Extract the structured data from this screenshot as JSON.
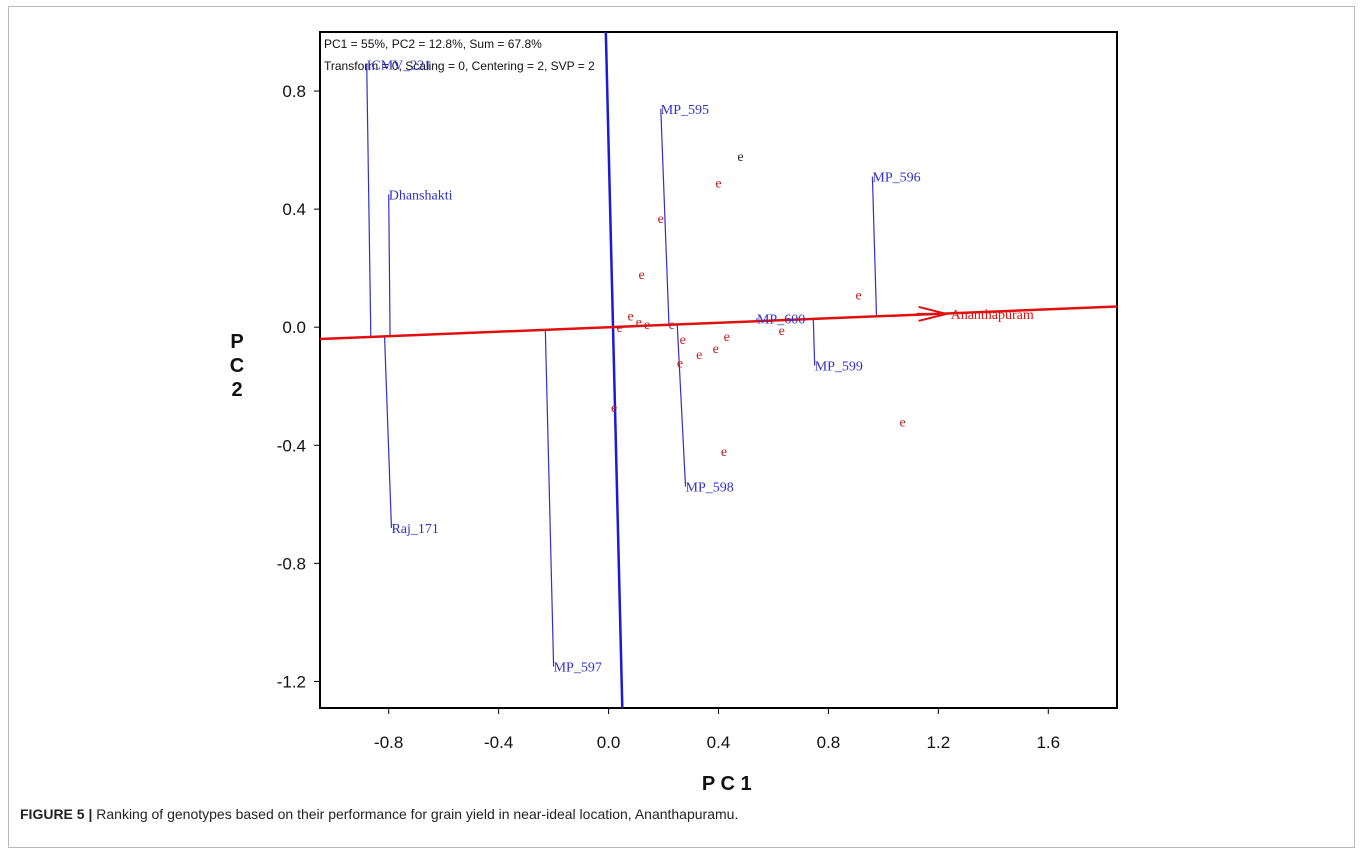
{
  "chart_data": {
    "type": "scatter",
    "info_line1": "PC1 = 55%, PC2 = 12.8%, Sum = 67.8%",
    "info_line2": "Transform = 0, Scaling = 0, Centering = 2, SVP = 2",
    "xlabel": "P C 1",
    "ylabel": [
      "P",
      "C",
      "2"
    ],
    "xlim": [
      -1.05,
      1.85
    ],
    "ylim": [
      -1.29,
      1.0
    ],
    "xticks": [
      -0.8,
      -0.4,
      0.0,
      0.4,
      0.8,
      1.2,
      1.6
    ],
    "xtick_labels": [
      "-0.8",
      "-0.4",
      "0.0",
      "0.4",
      "0.8",
      "1.2",
      "1.6"
    ],
    "yticks": [
      0.8,
      0.4,
      0.0,
      -0.4,
      -0.8,
      -1.2
    ],
    "ytick_labels": [
      "0.8",
      "0.4",
      "0.0",
      "-0.4",
      "-0.8",
      "-1.2"
    ],
    "colors": {
      "genotype": "#3030c8",
      "env_marker": "#c02020",
      "env_marker_dark": "#222222",
      "aec": "#e01010",
      "perp_axis": "#1a1ad8"
    },
    "aec_axis": {
      "from": [
        -1.05,
        -0.04
      ],
      "to": [
        1.85,
        0.07
      ]
    },
    "perpendicular_axis": {
      "from": [
        -0.01,
        1.0
      ],
      "to": [
        0.05,
        -1.29
      ]
    },
    "environment": {
      "label": "Ananthapuramu",
      "display_label": "Ananthapuram",
      "x": 1.23,
      "y": 0.045
    },
    "genotypes": [
      {
        "label": "ICMV_221",
        "x": -0.88,
        "y": 0.89,
        "proj": [
          -0.865,
          -0.035
        ]
      },
      {
        "label": "Dhanshakti",
        "x": -0.8,
        "y": 0.45,
        "proj": [
          -0.795,
          -0.033
        ]
      },
      {
        "label": "Raj_171",
        "x": -0.79,
        "y": -0.68,
        "proj": [
          -0.815,
          -0.033
        ]
      },
      {
        "label": "MP_595",
        "x": 0.19,
        "y": 0.74,
        "proj": [
          0.22,
          0.003
        ]
      },
      {
        "label": "MP_596",
        "x": 0.96,
        "y": 0.51,
        "proj": [
          0.975,
          0.035
        ]
      },
      {
        "label": "MP_600",
        "x": 0.54,
        "y": 0.03,
        "proj": [
          0.54,
          0.018
        ]
      },
      {
        "label": "MP_599",
        "x": 0.75,
        "y": -0.13,
        "proj": [
          0.745,
          0.025
        ]
      },
      {
        "label": "MP_598",
        "x": 0.28,
        "y": -0.54,
        "proj": [
          0.25,
          0.006
        ]
      },
      {
        "label": "MP_597",
        "x": -0.2,
        "y": -1.15,
        "proj": [
          -0.23,
          -0.012
        ]
      }
    ],
    "env_points": [
      {
        "label": "e",
        "x": 0.48,
        "y": 0.58,
        "dark": true
      },
      {
        "label": "e",
        "x": 0.4,
        "y": 0.49
      },
      {
        "label": "e",
        "x": 0.19,
        "y": 0.37
      },
      {
        "label": "e",
        "x": 0.12,
        "y": 0.18
      },
      {
        "label": "e",
        "x": 0.91,
        "y": 0.11
      },
      {
        "label": "e",
        "x": 0.08,
        "y": 0.04
      },
      {
        "label": "e",
        "x": 0.04,
        "y": 0.0
      },
      {
        "label": "e",
        "x": 0.11,
        "y": 0.02
      },
      {
        "label": "e",
        "x": 0.14,
        "y": 0.01
      },
      {
        "label": "e",
        "x": 0.23,
        "y": 0.01
      },
      {
        "label": "e",
        "x": 0.63,
        "y": -0.01
      },
      {
        "label": "e",
        "x": 0.27,
        "y": -0.04
      },
      {
        "label": "e",
        "x": 0.43,
        "y": -0.03
      },
      {
        "label": "e",
        "x": 0.39,
        "y": -0.07
      },
      {
        "label": "e",
        "x": 0.33,
        "y": -0.09
      },
      {
        "label": "e",
        "x": 0.26,
        "y": -0.12
      },
      {
        "label": "e",
        "x": 0.02,
        "y": -0.27
      },
      {
        "label": "e",
        "x": 1.07,
        "y": -0.32
      },
      {
        "label": "e",
        "x": 0.42,
        "y": -0.42
      }
    ]
  },
  "caption": {
    "label": "FIGURE 5 |",
    "text": " Ranking of genotypes based on their performance for grain yield in near-ideal location, Ananthapuramu."
  }
}
